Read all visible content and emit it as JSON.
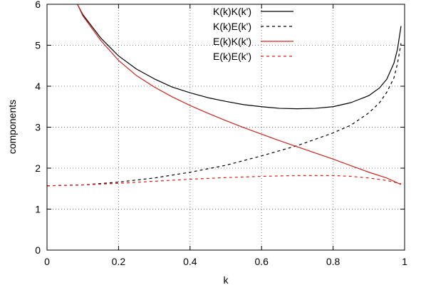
{
  "chart_data": {
    "type": "line",
    "xlabel": "k",
    "ylabel": "components",
    "xlim": [
      0,
      1
    ],
    "ylim": [
      0,
      6
    ],
    "x_ticks": [
      0,
      0.2,
      0.4,
      0.6,
      0.8,
      1
    ],
    "x_tick_labels": [
      "0",
      "0.2",
      "0.4",
      "0.6",
      "0.8",
      "1"
    ],
    "y_ticks": [
      0,
      1,
      2,
      3,
      4,
      5,
      6
    ],
    "y_tick_labels": [
      "0",
      "1",
      "2",
      "3",
      "4",
      "5",
      "6"
    ],
    "grid": true,
    "legend_position": "top-right",
    "series": [
      {
        "name": "K(k)K(k')",
        "color": "#000000",
        "dash": "solid",
        "x": [
          0.085,
          0.1,
          0.15,
          0.2,
          0.25,
          0.3,
          0.35,
          0.4,
          0.45,
          0.5,
          0.55,
          0.6,
          0.65,
          0.7,
          0.75,
          0.8,
          0.85,
          0.9,
          0.93,
          0.95,
          0.97,
          0.98,
          0.99
        ],
        "y": [
          6.0,
          5.75,
          5.18,
          4.74,
          4.42,
          4.18,
          3.98,
          3.84,
          3.72,
          3.63,
          3.55,
          3.5,
          3.46,
          3.45,
          3.46,
          3.5,
          3.6,
          3.77,
          3.96,
          4.17,
          4.56,
          4.9,
          5.47
        ]
      },
      {
        "name": "K(k)E(k')",
        "color": "#000000",
        "dash": "dashed",
        "x": [
          0.0,
          0.1,
          0.2,
          0.3,
          0.4,
          0.5,
          0.6,
          0.7,
          0.8,
          0.85,
          0.9,
          0.93,
          0.95,
          0.97,
          0.98,
          0.99
        ],
        "y": [
          1.57,
          1.59,
          1.66,
          1.76,
          1.9,
          2.07,
          2.3,
          2.55,
          2.86,
          3.05,
          3.35,
          3.6,
          3.85,
          4.2,
          4.55,
          5.05
        ]
      },
      {
        "name": "E(k)K(k')",
        "color": "#d0241c",
        "dash": "solid",
        "x": [
          0.085,
          0.1,
          0.15,
          0.2,
          0.25,
          0.3,
          0.35,
          0.4,
          0.45,
          0.5,
          0.55,
          0.6,
          0.65,
          0.7,
          0.75,
          0.8,
          0.85,
          0.9,
          0.95,
          0.99
        ],
        "y": [
          6.0,
          5.72,
          5.12,
          4.63,
          4.26,
          3.98,
          3.74,
          3.53,
          3.34,
          3.16,
          2.99,
          2.83,
          2.67,
          2.52,
          2.37,
          2.22,
          2.06,
          1.9,
          1.76,
          1.6
        ]
      },
      {
        "name": "E(k)E(k')",
        "color": "#d0241c",
        "dash": "dashed",
        "x": [
          0.0,
          0.1,
          0.2,
          0.3,
          0.4,
          0.5,
          0.6,
          0.7,
          0.8,
          0.85,
          0.9,
          0.95,
          0.99
        ],
        "y": [
          1.57,
          1.59,
          1.63,
          1.68,
          1.73,
          1.77,
          1.8,
          1.82,
          1.82,
          1.8,
          1.76,
          1.7,
          1.62
        ]
      }
    ]
  }
}
